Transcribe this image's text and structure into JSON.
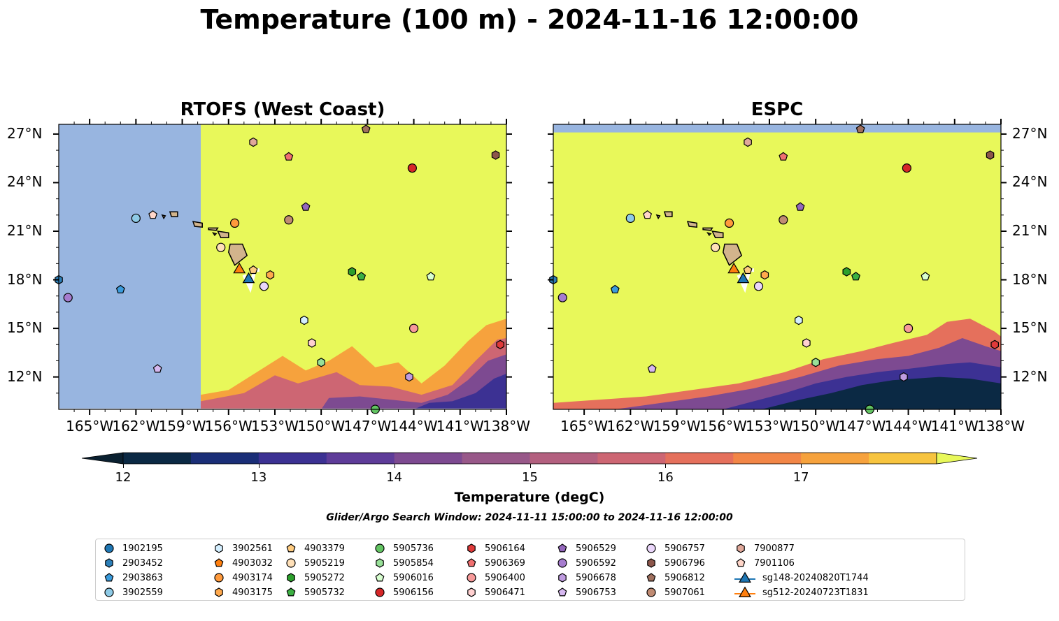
{
  "title": "Temperature (100 m) - 2024-11-16 12:00:00",
  "panels": [
    {
      "title": "RTOFS (West Coast)"
    },
    {
      "title": "ESPC"
    }
  ],
  "axes": {
    "x_ticks": [
      "165°W",
      "162°W",
      "159°W",
      "156°W",
      "153°W",
      "150°W",
      "147°W",
      "144°W",
      "141°W",
      "138°W"
    ],
    "y_ticks": [
      "27°N",
      "24°N",
      "21°N",
      "18°N",
      "15°N",
      "12°N"
    ]
  },
  "colorbar": {
    "label": "Temperature (degC)",
    "ticks": [
      "12",
      "13",
      "14",
      "15",
      "16",
      "17"
    ],
    "colors": [
      "#0b2944",
      "#1a2e77",
      "#3c3193",
      "#5e3c99",
      "#7d4a91",
      "#985889",
      "#b3607f",
      "#cd6673",
      "#e5705c",
      "#f28647",
      "#f6a23d",
      "#f7c43f"
    ],
    "under_color": "#0a2030",
    "over_color": "#e8f85a"
  },
  "colors": {
    "ocean_masked": "#98b5e0",
    "warm": "#e8f85a",
    "land": "#d2b48c"
  },
  "search_window": "Glider/Argo Search Window: 2024-11-11 15:00:00 to 2024-11-16 12:00:00",
  "legend": [
    {
      "label": "1902195",
      "color": "#1f77b4",
      "marker": "circle"
    },
    {
      "label": "2903452",
      "color": "#2c7fb8",
      "marker": "hexagon"
    },
    {
      "label": "2903863",
      "color": "#3a9bdc",
      "marker": "pentagon"
    },
    {
      "label": "3902559",
      "color": "#8ecae6",
      "marker": "circle"
    },
    {
      "label": "3902561",
      "color": "#d4efff",
      "marker": "hexagon"
    },
    {
      "label": "4903032",
      "color": "#ff7f0e",
      "marker": "pentagon"
    },
    {
      "label": "4903174",
      "color": "#ff9a3c",
      "marker": "circle"
    },
    {
      "label": "4903175",
      "color": "#ffa94d",
      "marker": "hexagon"
    },
    {
      "label": "4903379",
      "color": "#ffcc80",
      "marker": "pentagon"
    },
    {
      "label": "5905219",
      "color": "#ffe0b8",
      "marker": "circle"
    },
    {
      "label": "5905272",
      "color": "#2ca02c",
      "marker": "hexagon"
    },
    {
      "label": "5905732",
      "color": "#3cb043",
      "marker": "pentagon"
    },
    {
      "label": "5905736",
      "color": "#62c462",
      "marker": "circle"
    },
    {
      "label": "5905854",
      "color": "#98e098",
      "marker": "hexagon"
    },
    {
      "label": "5906016",
      "color": "#d8ffd0",
      "marker": "pentagon"
    },
    {
      "label": "5906156",
      "color": "#d62728",
      "marker": "circle"
    },
    {
      "label": "5906164",
      "color": "#e03a3a",
      "marker": "hexagon"
    },
    {
      "label": "5906369",
      "color": "#f07070",
      "marker": "pentagon"
    },
    {
      "label": "5906400",
      "color": "#f79a9a",
      "marker": "circle"
    },
    {
      "label": "5906471",
      "color": "#ffd0d0",
      "marker": "hexagon"
    },
    {
      "label": "5906529",
      "color": "#9467bd",
      "marker": "pentagon"
    },
    {
      "label": "5906592",
      "color": "#a67ccf",
      "marker": "circle"
    },
    {
      "label": "5906678",
      "color": "#bf9be0",
      "marker": "hexagon"
    },
    {
      "label": "5906753",
      "color": "#d6b8f0",
      "marker": "pentagon"
    },
    {
      "label": "5906757",
      "color": "#ead6fa",
      "marker": "circle"
    },
    {
      "label": "5906796",
      "color": "#8c564b",
      "marker": "hexagon"
    },
    {
      "label": "5906812",
      "color": "#a0705e",
      "marker": "pentagon"
    },
    {
      "label": "5907061",
      "color": "#c08b73",
      "marker": "circle"
    },
    {
      "label": "7900877",
      "color": "#e0a89a",
      "marker": "hexagon"
    },
    {
      "label": "7901106",
      "color": "#ffd6c9",
      "marker": "pentagon"
    },
    {
      "label": "sg148-20240820T1744",
      "color": "#1f77b4",
      "marker": "triangle"
    },
    {
      "label": "sg512-20240723T1831",
      "color": "#ff7f0e",
      "marker": "triangle"
    }
  ],
  "floats": [
    {
      "id": "2903452",
      "lon": -167.0,
      "lat": 18.0
    },
    {
      "id": "3902559",
      "lon": -162.0,
      "lat": 21.8
    },
    {
      "id": "7901106",
      "lon": -160.9,
      "lat": 22.0
    },
    {
      "id": "2903863",
      "lon": -163.0,
      "lat": 17.4
    },
    {
      "id": "5906592",
      "lon": -166.4,
      "lat": 16.9
    },
    {
      "id": "5906753",
      "lon": -160.6,
      "lat": 12.5
    },
    {
      "id": "4903174",
      "lon": -155.6,
      "lat": 21.5
    },
    {
      "id": "5905219",
      "lon": -156.5,
      "lat": 20.0
    },
    {
      "id": "4903379",
      "lon": -154.4,
      "lat": 18.6
    },
    {
      "id": "4903175",
      "lon": -153.3,
      "lat": 18.3
    },
    {
      "id": "5906757",
      "lon": -153.7,
      "lat": 17.6
    },
    {
      "id": "7900877",
      "lon": -154.4,
      "lat": 26.5
    },
    {
      "id": "5906369",
      "lon": -152.1,
      "lat": 25.6
    },
    {
      "id": "5907061",
      "lon": -152.1,
      "lat": 21.7
    },
    {
      "id": "5906529",
      "lon": -151.0,
      "lat": 22.5
    },
    {
      "id": "3902561",
      "lon": -151.1,
      "lat": 15.5
    },
    {
      "id": "5906471",
      "lon": -150.6,
      "lat": 14.1
    },
    {
      "id": "5905854",
      "lon": -150.0,
      "lat": 12.9
    },
    {
      "id": "5905272",
      "lon": -148.0,
      "lat": 18.5
    },
    {
      "id": "5905732",
      "lon": -147.4,
      "lat": 18.2
    },
    {
      "id": "5906016",
      "lon": -142.9,
      "lat": 18.2
    },
    {
      "id": "5906812",
      "lon": -147.1,
      "lat": 27.3
    },
    {
      "id": "5906156",
      "lon": -144.1,
      "lat": 24.9
    },
    {
      "id": "5906796",
      "lon": -138.7,
      "lat": 25.7
    },
    {
      "id": "5906400",
      "lon": -144.0,
      "lat": 15.0
    },
    {
      "id": "5906164",
      "lon": -138.4,
      "lat": 14.0
    },
    {
      "id": "5906678",
      "lon": -144.3,
      "lat": 12.0
    },
    {
      "id": "5905736",
      "lon": -146.5,
      "lat": 10.0
    }
  ],
  "gliders": [
    {
      "id": "sg512-20240723T1831",
      "lon": -155.3,
      "lat": 18.7
    },
    {
      "id": "sg148-20240820T1744",
      "lon": -154.7,
      "lat": 18.1
    }
  ]
}
